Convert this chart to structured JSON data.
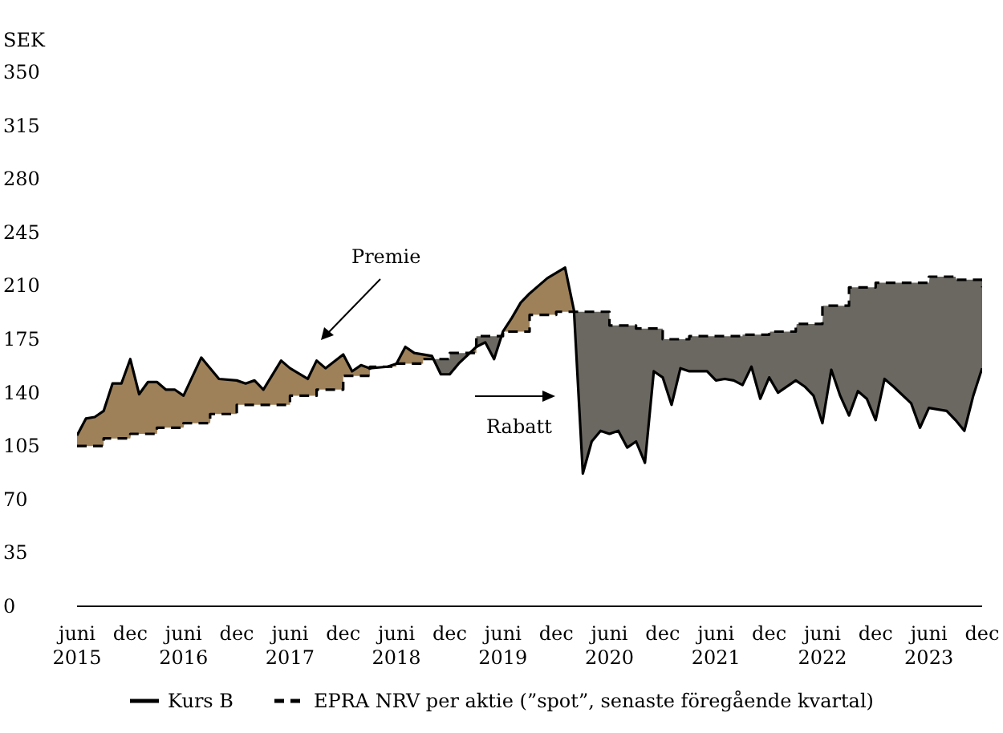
{
  "chart_data": {
    "type": "line",
    "ylabel": "SEK",
    "ylim": [
      0,
      350
    ],
    "yticks": [
      0,
      35,
      70,
      105,
      140,
      175,
      210,
      245,
      280,
      315,
      350
    ],
    "xlim": [
      "2015-06",
      "2023-12"
    ],
    "xticks": [
      {
        "value": "2015-06",
        "label": "juni 2015"
      },
      {
        "value": "2015-12",
        "label": "dec"
      },
      {
        "value": "2016-06",
        "label": "juni 2016"
      },
      {
        "value": "2016-12",
        "label": "dec"
      },
      {
        "value": "2017-06",
        "label": "juni 2017"
      },
      {
        "value": "2017-12",
        "label": "dec"
      },
      {
        "value": "2018-06",
        "label": "juni 2018"
      },
      {
        "value": "2018-12",
        "label": "dec"
      },
      {
        "value": "2019-06",
        "label": "juni 2019"
      },
      {
        "value": "2019-12",
        "label": "dec"
      },
      {
        "value": "2020-06",
        "label": "juni 2020"
      },
      {
        "value": "2020-12",
        "label": "dec"
      },
      {
        "value": "2021-06",
        "label": "juni 2021"
      },
      {
        "value": "2021-12",
        "label": "dec"
      },
      {
        "value": "2022-06",
        "label": "juni 2022"
      },
      {
        "value": "2022-12",
        "label": "dec"
      },
      {
        "value": "2023-06",
        "label": "juni 2023"
      },
      {
        "value": "2023-12",
        "label": "dec"
      }
    ],
    "grid": false,
    "legend": "bottom",
    "colors": [
      "#9e8159",
      "#6b6862"
    ],
    "annotations": [
      "Premie",
      "Rabatt"
    ],
    "series": [
      {
        "name": "Kurs B",
        "color": "#000000",
        "line_style": "solid",
        "x": [
          "2015-06",
          "2015-07",
          "2015-08",
          "2015-09",
          "2015-10",
          "2015-11",
          "2015-12",
          "2016-01",
          "2016-02",
          "2016-03",
          "2016-04",
          "2016-05",
          "2016-06",
          "2016-08",
          "2016-10",
          "2016-12",
          "2017-01",
          "2017-02",
          "2017-03",
          "2017-05",
          "2017-06",
          "2017-08",
          "2017-09",
          "2017-10",
          "2017-12",
          "2018-01",
          "2018-02",
          "2018-03",
          "2018-05",
          "2018-06",
          "2018-07",
          "2018-08",
          "2018-10",
          "2018-11",
          "2018-12",
          "2019-01",
          "2019-03",
          "2019-04",
          "2019-05",
          "2019-06",
          "2019-07",
          "2019-08",
          "2019-09",
          "2019-10",
          "2019-11",
          "2020-01",
          "2020-02",
          "2020-03",
          "2020-04",
          "2020-05",
          "2020-06",
          "2020-07",
          "2020-08",
          "2020-09",
          "2020-10",
          "2020-11",
          "2020-12",
          "2021-01",
          "2021-02",
          "2021-03",
          "2021-05",
          "2021-06",
          "2021-07",
          "2021-08",
          "2021-09",
          "2021-10",
          "2021-11",
          "2021-12",
          "2022-01",
          "2022-03",
          "2022-04",
          "2022-05",
          "2022-06",
          "2022-07",
          "2022-08",
          "2022-09",
          "2022-10",
          "2022-11",
          "2022-12",
          "2023-01",
          "2023-02",
          "2023-04",
          "2023-05",
          "2023-06",
          "2023-08",
          "2023-09",
          "2023-10",
          "2023-11",
          "2023-12"
        ],
        "values": [
          112,
          123,
          124,
          128,
          146,
          146,
          162,
          139,
          147,
          147,
          142,
          142,
          138,
          163,
          149,
          148,
          146,
          148,
          142,
          161,
          156,
          149,
          161,
          156,
          165,
          154,
          158,
          156,
          157,
          159,
          170,
          166,
          164,
          152,
          152,
          159,
          170,
          173,
          162,
          180,
          189,
          199,
          205,
          210,
          215,
          222,
          194,
          87,
          108,
          115,
          113,
          115,
          104,
          108,
          94,
          154,
          150,
          132,
          156,
          154,
          154,
          148,
          149,
          148,
          145,
          157,
          136,
          150,
          140,
          148,
          144,
          138,
          120,
          155,
          138,
          125,
          141,
          136,
          122,
          149,
          144,
          133,
          117,
          130,
          128,
          122,
          115,
          138,
          156
        ]
      },
      {
        "name": "EPRA NRV per aktie (”spot”, senaste föregående kvartal)",
        "type": "step",
        "color": "#000000",
        "line_style": "dashed",
        "x": [
          "2015-06",
          "2015-09",
          "2015-12",
          "2016-03",
          "2016-06",
          "2016-09",
          "2016-12",
          "2017-06",
          "2017-09",
          "2017-12",
          "2018-03",
          "2018-06",
          "2018-09",
          "2018-12",
          "2019-03",
          "2019-06",
          "2019-09",
          "2019-12",
          "2020-06",
          "2020-09",
          "2020-12",
          "2021-03",
          "2021-09",
          "2021-12",
          "2022-03",
          "2022-06",
          "2022-09",
          "2022-12",
          "2023-06",
          "2023-09",
          "2023-12"
        ],
        "values": [
          105,
          110,
          113,
          117,
          120,
          126,
          132,
          138,
          142,
          151,
          157,
          159,
          162,
          166,
          177,
          180,
          191,
          193,
          184,
          182,
          175,
          177,
          178,
          180,
          185,
          197,
          209,
          212,
          216,
          214,
          209
        ]
      }
    ]
  }
}
